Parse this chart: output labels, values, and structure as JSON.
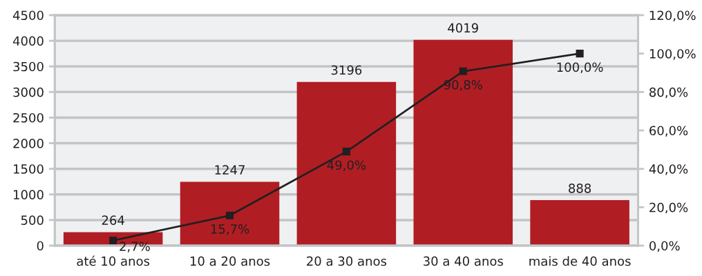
{
  "chart_data": {
    "type": "bar",
    "categories": [
      "até 10 anos",
      "10 a 20 anos",
      "20 a 30 anos",
      "30 a 40 anos",
      "mais de 40 anos"
    ],
    "series": [
      {
        "color": "#b01e24",
        "values": [
          264,
          1247,
          3196,
          4019,
          888
        ],
        "value_labels": [
          "264",
          "1247",
          "3196",
          "4019",
          "888"
        ]
      },
      {
        "type": "line",
        "axis": "y2",
        "color": "#231f20",
        "values": [
          2.7,
          15.7,
          49.0,
          90.8,
          100.0
        ],
        "value_labels": [
          "2,7%",
          "15,7%",
          "49,0%",
          "90,8%",
          "100,0%"
        ],
        "marker": "square",
        "line_style": "solid"
      }
    ],
    "ylim": [
      0,
      4500
    ],
    "yticks": [
      0,
      500,
      1000,
      1500,
      2000,
      2500,
      3000,
      3500,
      4000,
      4500
    ],
    "y2lim": [
      0,
      120
    ],
    "y2ticks": [
      {
        "value": 0,
        "label": "0,0%"
      },
      {
        "value": 20,
        "label": "20,0%"
      },
      {
        "value": 40,
        "label": "40,0%"
      },
      {
        "value": 60,
        "label": "60,0%"
      },
      {
        "value": 80,
        "label": "80,0%"
      },
      {
        "value": 100,
        "label": "100,0%"
      },
      {
        "value": 120,
        "label": "120,0%"
      }
    ],
    "grid": "y"
  }
}
